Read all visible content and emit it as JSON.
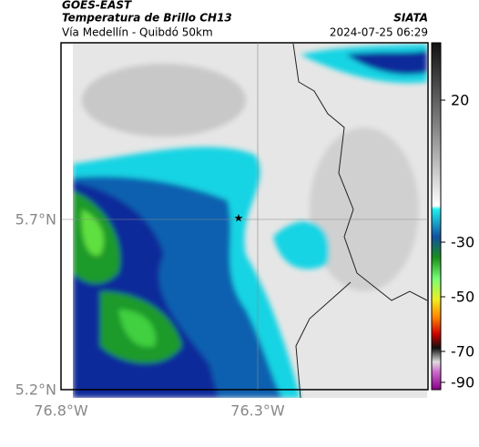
{
  "header": {
    "title": "GOES-EAST",
    "subtitle": "Temperatura de Brillo CH13",
    "location": "Vía Medellín - Quibdó 50km",
    "source": "SIATA",
    "datetime": "2024-07-25 06:29"
  },
  "map": {
    "lat_labels": [
      "5.7°N",
      "5.2°N"
    ],
    "lon_labels": [
      "76.8°W",
      "76.3°W"
    ]
  },
  "colorbar": {
    "ticks": [
      20,
      -30,
      -50,
      -70,
      -90
    ]
  }
}
